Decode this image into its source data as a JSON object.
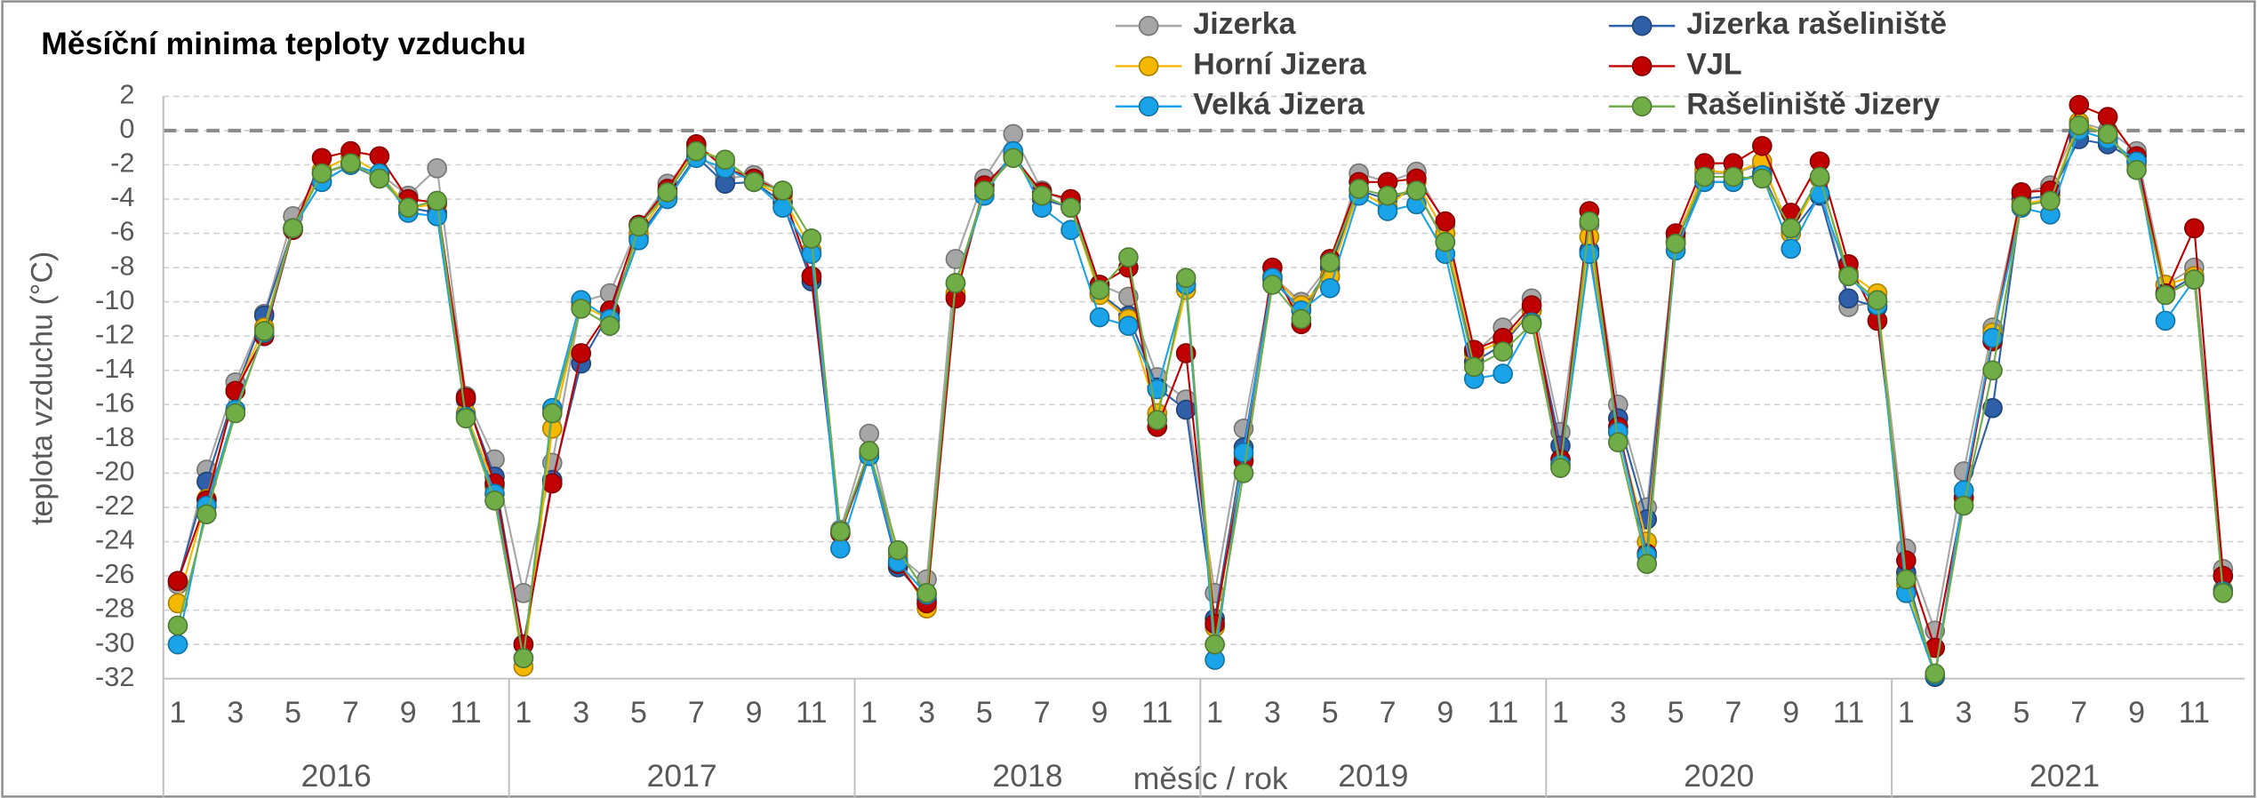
{
  "chart_data": {
    "type": "line",
    "title": "Měsíční minima teploty vzduchu",
    "ylabel": "teplota vzduchu (°C)",
    "xlabel": "měsíc / rok",
    "categories": [
      "1",
      null,
      "3",
      null,
      "5",
      null,
      "7",
      null,
      "9",
      null,
      "11",
      null,
      "1",
      null,
      "3",
      null,
      "5",
      null,
      "7",
      null,
      "9",
      null,
      "11",
      null,
      "1",
      null,
      "3",
      null,
      "5",
      null,
      "7",
      null,
      "9",
      null,
      "11",
      null,
      "1",
      null,
      "3",
      null,
      "5",
      null,
      "7",
      null,
      "9",
      null,
      "11",
      null,
      "1",
      null,
      "3",
      null,
      "5",
      null,
      "7",
      null,
      "9",
      null,
      "11",
      null,
      "1",
      null,
      "3",
      null,
      "5",
      null,
      "7",
      null,
      "9",
      null,
      "11",
      null
    ],
    "groups": [
      "2016",
      "2017",
      "2018",
      "2019",
      "2020",
      "2021"
    ],
    "ylim": [
      -32,
      2
    ],
    "yticks": [
      2,
      0,
      -2,
      -4,
      -6,
      -8,
      -10,
      -12,
      -14,
      -16,
      -18,
      -20,
      -22,
      -24,
      -26,
      -28,
      -30,
      -32
    ],
    "reference_line": 0,
    "grid": true,
    "series": [
      {
        "name": "Jizerka",
        "color": "#a6a6a6",
        "values": [
          -26.5,
          -19.8,
          -14.7,
          -10.7,
          -5,
          -2.5,
          -2,
          -2.5,
          -3.8,
          -2.2,
          -15.5,
          -19.2,
          -27,
          -19.4,
          -10,
          -9.5,
          -5.5,
          -3.1,
          -1.2,
          -2.8,
          -2.6,
          -3.6,
          -8.5,
          -23.3,
          -17.7,
          -24.8,
          -26.2,
          -7.5,
          -2.8,
          -0.2,
          -3.5,
          -4.2,
          -9,
          -9.7,
          -14.4,
          -15.7,
          -27,
          -17.4,
          -8.5,
          -10,
          -7.8,
          -2.5,
          -3,
          -2.4,
          -5.5,
          -13,
          -11.5,
          -9.8,
          -17.6,
          -5.5,
          -16,
          -22,
          -6.3,
          -2.5,
          -2.5,
          -2,
          -5.8,
          -2.8,
          -10.3,
          -10,
          -24.4,
          -29.2,
          -19.9,
          -11.5,
          -3.7,
          -3.2,
          0.5,
          0,
          -1.2,
          -9,
          -8,
          -25.6
        ]
      },
      {
        "name": "Jizerka rašeliniště",
        "color": "#2e5fa8",
        "values": [
          -26.3,
          -20.5,
          -15.2,
          -10.8,
          -5.7,
          -3,
          -2,
          -2.8,
          -4.5,
          -4.8,
          -15.7,
          -20.2,
          -30,
          -20.4,
          -13.6,
          -10.6,
          -6.2,
          -3.9,
          -1.5,
          -3.1,
          -3,
          -4.2,
          -8.8,
          -23.5,
          -19,
          -25.5,
          -27.4,
          -9.6,
          -3.5,
          -1.3,
          -4,
          -4.5,
          -9.5,
          -10.8,
          -15,
          -16.3,
          -28.5,
          -18.5,
          -8.7,
          -10.5,
          -8,
          -3.5,
          -4,
          -3.5,
          -6.5,
          -13.5,
          -12.5,
          -10.5,
          -18.4,
          -7,
          -16.8,
          -22.7,
          -6.5,
          -3,
          -3,
          -2.5,
          -6,
          -3.8,
          -9.8,
          -10.3,
          -25.8,
          -31.9,
          -21.5,
          -16.2,
          -4,
          -3.8,
          -0.5,
          -0.8,
          -1.8,
          -9.5,
          -8.5,
          -26
        ]
      },
      {
        "name": "Horní Jizera",
        "color": "#f5b800",
        "values": [
          -27.6,
          -21.5,
          -15.2,
          -11.5,
          -5.7,
          -2.3,
          -1.5,
          -2.5,
          -4.5,
          -4.3,
          -16.5,
          -20.8,
          -31.3,
          -17.4,
          -10.2,
          -11,
          -6,
          -3.6,
          -1,
          -1.8,
          -3,
          -3.8,
          -7,
          -23.5,
          -18.8,
          -25,
          -27.9,
          -9.5,
          -3.5,
          -1.5,
          -3.8,
          -4.5,
          -9.6,
          -11,
          -16.5,
          -9.3,
          -29,
          -19,
          -8.5,
          -10.2,
          -8.5,
          -3.5,
          -4.5,
          -3,
          -6,
          -13,
          -12.3,
          -10.5,
          -19.5,
          -6.2,
          -17.6,
          -24,
          -6.5,
          -2.3,
          -2.5,
          -1.8,
          -6,
          -2.8,
          -8.3,
          -9.5,
          -26.5,
          -31.8,
          -21.5,
          -11.8,
          -4.3,
          -4,
          0.5,
          -0.3,
          -2,
          -9,
          -8.5,
          -26.8
        ]
      },
      {
        "name": "VJL",
        "color": "#c00000",
        "values": [
          -26.3,
          -21.6,
          -15.2,
          -12,
          -5.8,
          -1.6,
          -1.2,
          -1.5,
          -4,
          -4.2,
          -15.6,
          -20.6,
          -30,
          -20.6,
          -13,
          -10.5,
          -5.5,
          -3.4,
          -0.8,
          -2.2,
          -2.8,
          -3.6,
          -8.5,
          -23.5,
          -18.8,
          -25.3,
          -27.6,
          -9.8,
          -3.2,
          -1.5,
          -3.6,
          -4,
          -9,
          -8,
          -17.3,
          -13,
          -28.8,
          -19.3,
          -8,
          -11.3,
          -7.5,
          -3,
          -3,
          -2.8,
          -5.3,
          -12.8,
          -12.1,
          -10.2,
          -19.2,
          -4.7,
          -17.3,
          -24.7,
          -6,
          -1.9,
          -1.9,
          -0.9,
          -4.8,
          -1.8,
          -7.8,
          -11.1,
          -25.1,
          -30.2,
          -21.4,
          -12.3,
          -3.6,
          -3.5,
          1.5,
          0.8,
          -1.5,
          -9.5,
          -5.7,
          -26
        ]
      },
      {
        "name": "Velká Jizera",
        "color": "#1aa3e8",
        "values": [
          -30,
          -21.9,
          -16.3,
          -11.8,
          -5.7,
          -3,
          -2,
          -2.5,
          -4.8,
          -5,
          -16.7,
          -21.2,
          -30.8,
          -16.2,
          -9.9,
          -11,
          -6.4,
          -4,
          -1.6,
          -2.2,
          -3,
          -4.5,
          -7.2,
          -24.4,
          -19,
          -25.2,
          -27.1,
          -8.9,
          -3.8,
          -1.2,
          -4.5,
          -5.8,
          -10.9,
          -11.4,
          -15.1,
          -9,
          -30.9,
          -18.8,
          -8.6,
          -10.5,
          -9.2,
          -3.8,
          -4.7,
          -4.3,
          -7.2,
          -14.5,
          -14.2,
          -11.2,
          -19.5,
          -7.2,
          -17.6,
          -24.8,
          -7,
          -3,
          -3,
          -2.6,
          -6.9,
          -3.7,
          -8.5,
          -10.2,
          -27,
          -31.8,
          -21,
          -12.1,
          -4.5,
          -4.9,
          0,
          -0.5,
          -1.8,
          -11.1,
          -8.7,
          -26.9
        ]
      },
      {
        "name": "Rašeliniště Jizery",
        "color": "#70ad47",
        "values": [
          -28.9,
          -22.4,
          -16.5,
          -11.7,
          -5.7,
          -2.5,
          -1.9,
          -2.8,
          -4.5,
          -4.1,
          -16.8,
          -21.6,
          -30.8,
          -16.5,
          -10.4,
          -11.4,
          -5.6,
          -3.6,
          -1.2,
          -1.7,
          -3,
          -3.5,
          -6.3,
          -23.4,
          -18.7,
          -24.5,
          -27,
          -8.9,
          -3.5,
          -1.6,
          -3.8,
          -4.5,
          -9.3,
          -7.4,
          -16.9,
          -8.6,
          -30,
          -20,
          -9,
          -11,
          -7.7,
          -3.4,
          -3.8,
          -3.5,
          -6.5,
          -13.8,
          -12.9,
          -11.3,
          -19.7,
          -5.3,
          -18.2,
          -25.3,
          -6.6,
          -2.7,
          -2.7,
          -2.8,
          -5.7,
          -2.7,
          -8.5,
          -9.9,
          -26.2,
          -31.7,
          -21.9,
          -14,
          -4.4,
          -4.1,
          0.3,
          -0.2,
          -2.3,
          -9.6,
          -8.7,
          -27
        ]
      }
    ]
  }
}
